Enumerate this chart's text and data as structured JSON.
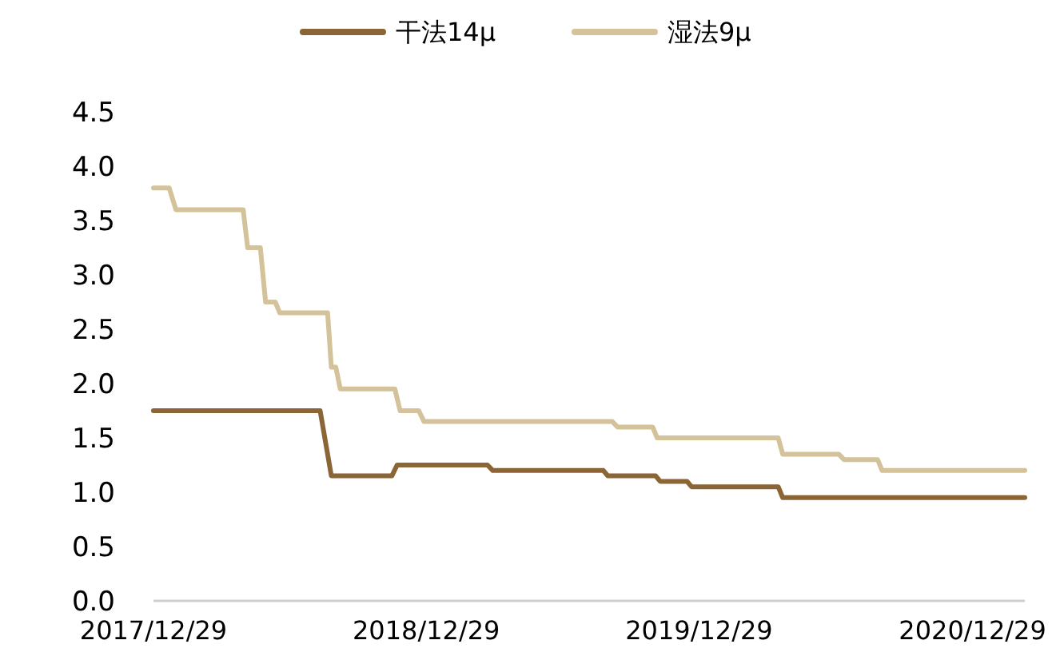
{
  "chart_data": {
    "type": "line",
    "legend": "top",
    "line_style": "solid",
    "grid": false,
    "xlim": [
      "2017-12-29",
      "2021-03-09"
    ],
    "xticks": [
      {
        "value": "2017-12-29",
        "label": "2017/12/29"
      },
      {
        "value": "2018-12-29",
        "label": "2018/12/29"
      },
      {
        "value": "2019-12-29",
        "label": "2019/12/29"
      },
      {
        "value": "2020-12-29",
        "label": "2020/12/29"
      }
    ],
    "ylim": [
      0,
      4.5
    ],
    "yticks": [
      {
        "value": 0,
        "label": "0.0"
      },
      {
        "value": 0.5,
        "label": "0.5"
      },
      {
        "value": 1,
        "label": "1.0"
      },
      {
        "value": 1.5,
        "label": "1.5"
      },
      {
        "value": 2,
        "label": "2.0"
      },
      {
        "value": 2.5,
        "label": "2.5"
      },
      {
        "value": 3,
        "label": "3.0"
      },
      {
        "value": 3.5,
        "label": "3.5"
      },
      {
        "value": 4,
        "label": "4.0"
      },
      {
        "value": 4.5,
        "label": "4.5"
      }
    ],
    "series": [
      {
        "name": "干法14μ",
        "color": "#8b6535",
        "x": [
          "2017-12-29",
          "2018-08-09",
          "2018-08-24",
          "2018-11-13",
          "2018-11-20",
          "2019-03-21",
          "2019-03-28",
          "2019-08-23",
          "2019-08-29",
          "2019-11-01",
          "2019-11-07",
          "2019-12-13",
          "2019-12-19",
          "2020-04-13",
          "2020-04-19",
          "2021-03-09"
        ],
        "values": [
          1.75,
          1.75,
          1.15,
          1.15,
          1.25,
          1.25,
          1.2,
          1.2,
          1.15,
          1.15,
          1.1,
          1.1,
          1.05,
          1.05,
          0.95,
          0.95
        ]
      },
      {
        "name": "湿法9μ",
        "color": "#d4c29a",
        "x": [
          "2017-12-29",
          "2018-01-19",
          "2018-01-28",
          "2018-04-28",
          "2018-05-04",
          "2018-05-21",
          "2018-05-28",
          "2018-06-10",
          "2018-06-16",
          "2018-08-19",
          "2018-08-24",
          "2018-08-30",
          "2018-09-05",
          "2018-11-17",
          "2018-11-24",
          "2018-12-19",
          "2018-12-26",
          "2019-09-04",
          "2019-09-11",
          "2019-10-28",
          "2019-11-03",
          "2020-04-13",
          "2020-04-19",
          "2020-07-03",
          "2020-07-10",
          "2020-08-24",
          "2020-08-30",
          "2021-03-09"
        ],
        "values": [
          3.8,
          3.8,
          3.6,
          3.6,
          3.25,
          3.25,
          2.75,
          2.75,
          2.65,
          2.65,
          2.15,
          2.15,
          1.95,
          1.95,
          1.75,
          1.75,
          1.65,
          1.65,
          1.6,
          1.6,
          1.5,
          1.5,
          1.35,
          1.35,
          1.3,
          1.3,
          1.2,
          1.2
        ]
      }
    ]
  }
}
